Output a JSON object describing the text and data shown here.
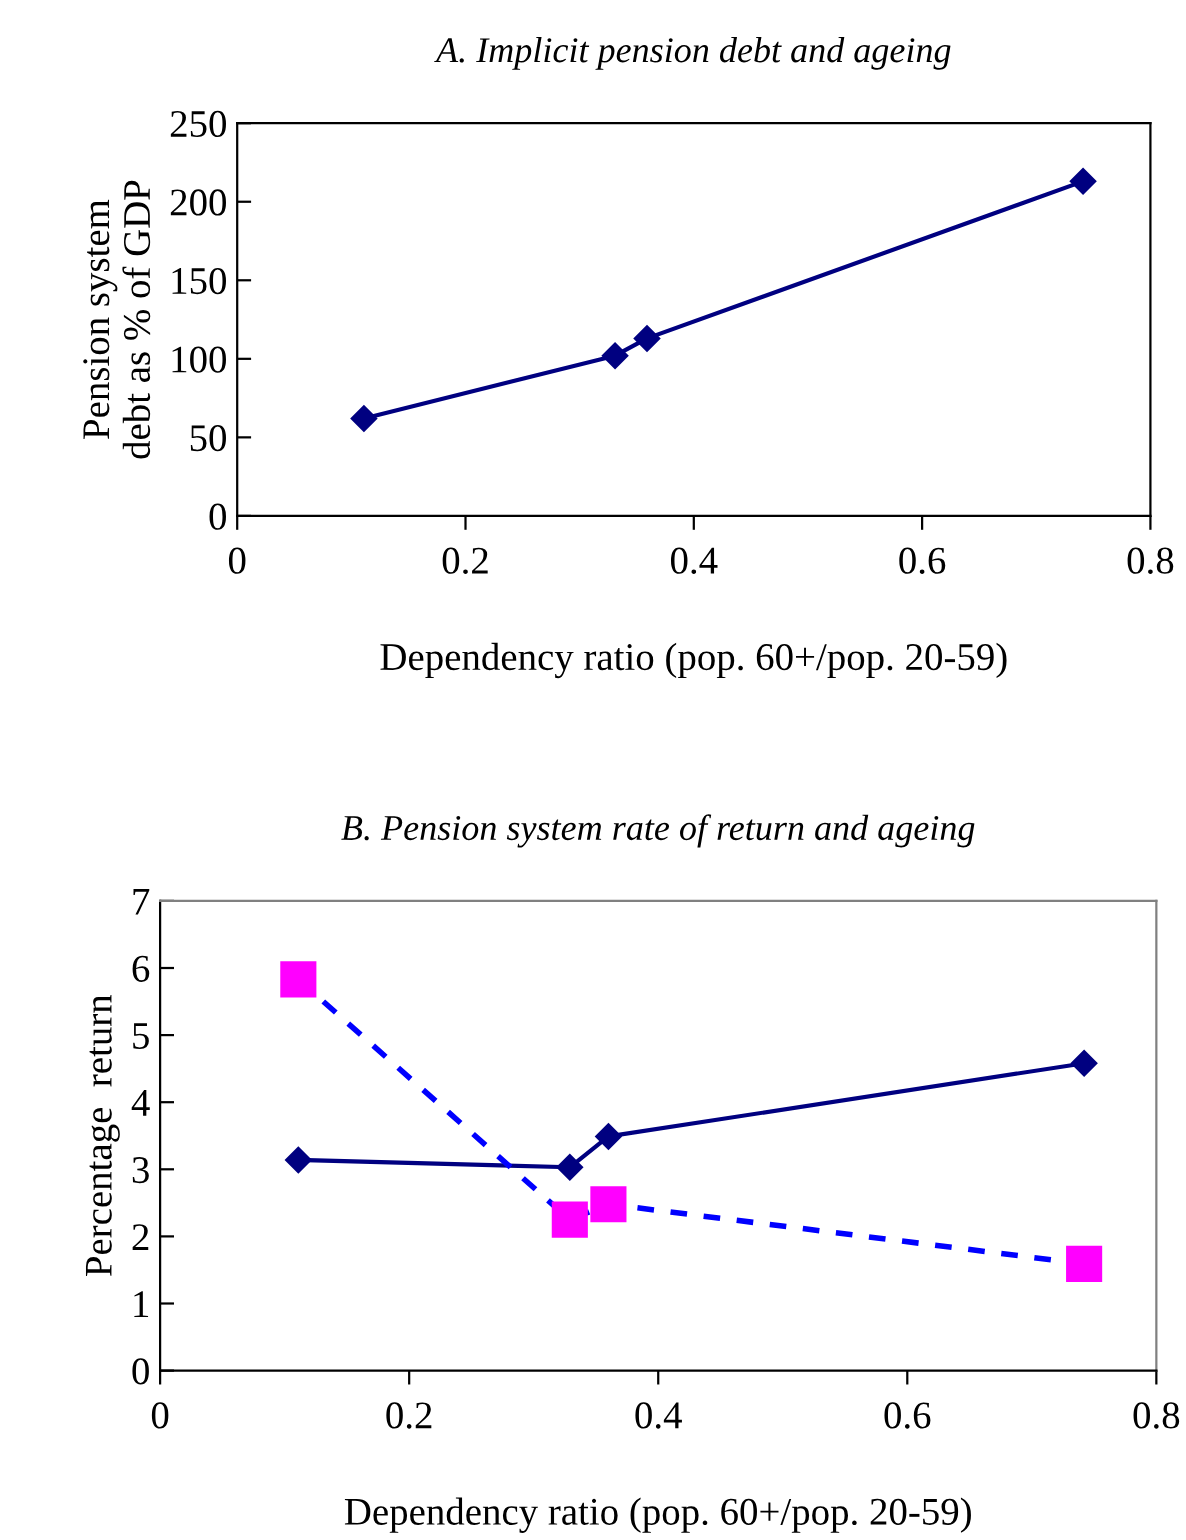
{
  "chart_data": [
    {
      "type": "line",
      "title": "A. Implicit pension debt and ageing",
      "xlabel": "Dependency ratio (pop. 60+/pop. 20-59)",
      "ylabel": "Pension system\ndebt as % of GDP",
      "marker": "diamond",
      "line_style": "solid",
      "grid": false,
      "legend": false,
      "xlim": [
        0,
        0.8
      ],
      "xticks": [
        0,
        0.2,
        0.4,
        0.6,
        0.8
      ],
      "ylim": [
        0,
        250
      ],
      "yticks": [
        0,
        50,
        100,
        150,
        200,
        250
      ],
      "series": [
        {
          "color": "#000080",
          "x": [
            0.111,
            0.331,
            0.359,
            0.741
          ],
          "values": [
            62,
            102,
            113,
            213
          ]
        }
      ]
    },
    {
      "type": "line",
      "title": "B. Pension system rate of return and ageing",
      "xlabel": "Dependency ratio (pop. 60+/pop. 20-59)",
      "ylabel": "Percentage  return",
      "grid": false,
      "legend": false,
      "xlim": [
        0,
        0.8
      ],
      "xticks": [
        0,
        0.2,
        0.4,
        0.6,
        0.8
      ],
      "ylim": [
        0,
        7
      ],
      "yticks": [
        0,
        1,
        2,
        3,
        4,
        5,
        6,
        7
      ],
      "series": [
        {
          "color": "#000080",
          "marker": "diamond",
          "line_style": "solid",
          "x": [
            0.111,
            0.329,
            0.36,
            0.742
          ],
          "values": [
            3.14,
            3.03,
            3.49,
            4.58
          ]
        },
        {
          "color": "#0000ff",
          "colors": [
            "#ff00ff",
            "#ff00ff",
            "#ff00ff",
            "#ff00ff"
          ],
          "marker": "square",
          "line_style": "dashed",
          "x": [
            0.111,
            0.329,
            0.36,
            0.742
          ],
          "values": [
            5.83,
            2.25,
            2.48,
            1.59
          ]
        }
      ]
    }
  ]
}
